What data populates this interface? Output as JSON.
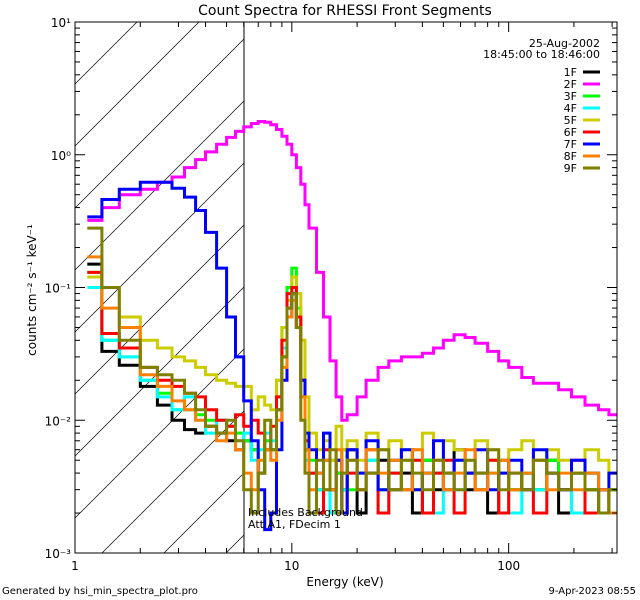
{
  "chart_data": {
    "type": "line",
    "title": "Count Spectra for RHESSI Front Segments",
    "xlabel": "Energy (keV)",
    "ylabel": "counts cm⁻² s⁻¹ keV⁻¹",
    "xscale": "log",
    "yscale": "log",
    "xlim": [
      1,
      316
    ],
    "ylim": [
      0.001,
      10
    ],
    "x_tick_labels": [
      "1",
      "10",
      "100"
    ],
    "y_tick_labels": [
      "10⁻³",
      "10⁻²",
      "10⁻¹",
      "10⁰",
      "10¹"
    ],
    "attenuated_region_keV": [
      1,
      6
    ],
    "legend_placement": "top-right",
    "date": "25-Aug-2002",
    "time_range": "18:45:00 to 18:46:00",
    "annotations": [
      "Includes Background",
      "Att A1, FDecim 1"
    ],
    "energy_bin_edges_keV": [
      1.14,
      1.33,
      1.6,
      2.0,
      2.4,
      2.8,
      3.2,
      3.6,
      4.0,
      4.5,
      5.0,
      5.5,
      6.0,
      6.5,
      7.0,
      7.5,
      8.0,
      8.5,
      9.0,
      9.5,
      10.0,
      10.5,
      11.0,
      11.5,
      12,
      13,
      14,
      15,
      16,
      17,
      18,
      20,
      22,
      25,
      28,
      32,
      36,
      40,
      45,
      50,
      56,
      63,
      70,
      80,
      90,
      100,
      115,
      130,
      150,
      170,
      195,
      225,
      260,
      290,
      316
    ],
    "series": [
      {
        "name": "1F",
        "color": "#000000",
        "values": [
          0.15,
          0.033,
          0.026,
          0.018,
          0.013,
          0.01,
          0.0085,
          0.008,
          0.009,
          0.008,
          0.007,
          0.006,
          0.007,
          0.006,
          0.004,
          0.006,
          0.006,
          0.012,
          0.03,
          0.07,
          0.09,
          0.05,
          0.02,
          0.006,
          0.004,
          0.003,
          0.005,
          0.002,
          0.004,
          0.003,
          0.006,
          0.002,
          0.004,
          0.005,
          0.003,
          0.004,
          0.002,
          0.005,
          0.003,
          0.004,
          0.006,
          0.003,
          0.004,
          0.002,
          0.005,
          0.003,
          0.004,
          0.003,
          0.005,
          0.002,
          0.004,
          0.003,
          0.002,
          0.003
        ]
      },
      {
        "name": "2F",
        "color": "#ff00ff",
        "values": [
          0.32,
          0.4,
          0.5,
          0.55,
          0.62,
          0.68,
          0.8,
          0.92,
          1.05,
          1.2,
          1.35,
          1.5,
          1.62,
          1.72,
          1.78,
          1.76,
          1.68,
          1.55,
          1.38,
          1.2,
          1.0,
          0.8,
          0.6,
          0.42,
          0.28,
          0.13,
          0.06,
          0.028,
          0.015,
          0.01,
          0.011,
          0.015,
          0.02,
          0.025,
          0.028,
          0.03,
          0.03,
          0.032,
          0.035,
          0.04,
          0.044,
          0.042,
          0.038,
          0.033,
          0.028,
          0.025,
          0.021,
          0.019,
          0.019,
          0.017,
          0.015,
          0.013,
          0.012,
          0.011
        ]
      },
      {
        "name": "3F",
        "color": "#00ff00",
        "values": [
          0.13,
          0.04,
          0.03,
          0.02,
          0.016,
          0.012,
          0.012,
          0.011,
          0.01,
          0.01,
          0.009,
          0.008,
          0.007,
          0.006,
          0.005,
          0.007,
          0.006,
          0.02,
          0.05,
          0.1,
          0.14,
          0.07,
          0.02,
          0.006,
          0.005,
          0.004,
          0.003,
          0.005,
          0.004,
          0.006,
          0.003,
          0.004,
          0.005,
          0.003,
          0.004,
          0.006,
          0.003,
          0.005,
          0.004,
          0.003,
          0.005,
          0.004,
          0.003,
          0.005,
          0.004,
          0.003,
          0.004,
          0.003,
          0.005,
          0.003,
          0.004,
          0.003,
          0.002,
          0.003
        ]
      },
      {
        "name": "4F",
        "color": "#00ffff",
        "values": [
          0.1,
          0.04,
          0.03,
          0.02,
          0.015,
          0.012,
          0.015,
          0.01,
          0.008,
          0.01,
          0.009,
          0.007,
          0.008,
          0.005,
          0.006,
          0.008,
          0.007,
          0.015,
          0.035,
          0.08,
          0.1,
          0.06,
          0.015,
          0.005,
          0.004,
          0.003,
          0.006,
          0.002,
          0.005,
          0.003,
          0.004,
          0.003,
          0.005,
          0.002,
          0.004,
          0.003,
          0.005,
          0.004,
          0.002,
          0.005,
          0.003,
          0.004,
          0.003,
          0.004,
          0.005,
          0.002,
          0.004,
          0.003,
          0.004,
          0.003,
          0.002,
          0.004,
          0.003,
          0.002
        ]
      },
      {
        "name": "5F",
        "color": "#cccc00",
        "values": [
          0.12,
          0.1,
          0.06,
          0.04,
          0.035,
          0.03,
          0.028,
          0.025,
          0.022,
          0.02,
          0.019,
          0.018,
          0.018,
          0.012,
          0.015,
          0.013,
          0.012,
          0.02,
          0.05,
          0.08,
          0.12,
          0.09,
          0.04,
          0.015,
          0.008,
          0.006,
          0.007,
          0.005,
          0.009,
          0.006,
          0.007,
          0.005,
          0.008,
          0.006,
          0.007,
          0.005,
          0.006,
          0.008,
          0.005,
          0.007,
          0.006,
          0.005,
          0.007,
          0.006,
          0.005,
          0.006,
          0.007,
          0.005,
          0.006,
          0.005,
          0.004,
          0.006,
          0.005,
          0.004
        ]
      },
      {
        "name": "6F",
        "color": "#ff0000",
        "values": [
          0.13,
          0.045,
          0.035,
          0.025,
          0.02,
          0.018,
          0.016,
          0.015,
          0.012,
          0.01,
          0.009,
          0.011,
          0.009,
          0.01,
          0.008,
          0.006,
          0.009,
          0.015,
          0.04,
          0.09,
          0.1,
          0.06,
          0.02,
          0.007,
          0.004,
          0.002,
          0.006,
          0.003,
          0.005,
          0.002,
          0.004,
          0.003,
          0.006,
          0.002,
          0.004,
          0.003,
          0.005,
          0.002,
          0.004,
          0.005,
          0.002,
          0.004,
          0.003,
          0.005,
          0.002,
          0.004,
          0.003,
          0.002,
          0.004,
          0.003,
          0.005,
          0.002,
          0.003,
          0.002
        ]
      },
      {
        "name": "7F",
        "color": "#0000ff",
        "values": [
          0.34,
          0.46,
          0.55,
          0.62,
          0.62,
          0.56,
          0.48,
          0.38,
          0.26,
          0.14,
          0.06,
          0.03,
          0.014,
          0.007,
          0.003,
          0.0015,
          0.002,
          0.006,
          0.02,
          0.06,
          0.09,
          0.05,
          0.02,
          0.008,
          0.006,
          0.004,
          0.008,
          0.003,
          0.005,
          0.002,
          0.006,
          0.004,
          0.007,
          0.003,
          0.005,
          0.006,
          0.003,
          0.004,
          0.007,
          0.003,
          0.005,
          0.004,
          0.006,
          0.003,
          0.004,
          0.005,
          0.003,
          0.006,
          0.004,
          0.003,
          0.005,
          0.004,
          0.003,
          0.004
        ]
      },
      {
        "name": "8F",
        "color": "#ff8000",
        "values": [
          0.17,
          0.07,
          0.05,
          0.022,
          0.018,
          0.014,
          0.012,
          0.01,
          0.009,
          0.007,
          0.008,
          0.006,
          0.004,
          0.003,
          0.005,
          0.006,
          0.005,
          0.01,
          0.025,
          0.06,
          0.08,
          0.05,
          0.015,
          0.006,
          0.003,
          0.004,
          0.005,
          0.003,
          0.006,
          0.004,
          0.005,
          0.003,
          0.006,
          0.004,
          0.005,
          0.003,
          0.006,
          0.004,
          0.005,
          0.003,
          0.004,
          0.006,
          0.003,
          0.004,
          0.005,
          0.003,
          0.004,
          0.005,
          0.003,
          0.004,
          0.003,
          0.004,
          0.003,
          0.002
        ]
      },
      {
        "name": "9F",
        "color": "#808000",
        "values": [
          0.28,
          0.1,
          0.04,
          0.025,
          0.022,
          0.02,
          0.016,
          0.012,
          0.009,
          0.008,
          0.01,
          0.007,
          0.003,
          0.002,
          0.004,
          0.01,
          0.006,
          0.012,
          0.03,
          0.07,
          0.09,
          0.05,
          0.01,
          0.004,
          0.002,
          0.005,
          0.003,
          0.006,
          0.002,
          0.004,
          0.005,
          0.003,
          0.004,
          0.006,
          0.003,
          0.005,
          0.004,
          0.003,
          0.005,
          0.004,
          0.003,
          0.005,
          0.004,
          0.006,
          0.003,
          0.004,
          0.003,
          0.005,
          0.004,
          0.003,
          0.004,
          0.003,
          0.002,
          0.003
        ]
      }
    ]
  },
  "footer": {
    "generated_by": "Generated by hsi_min_spectra_plot.pro",
    "timestamp": "9-Apr-2023 08:55"
  }
}
